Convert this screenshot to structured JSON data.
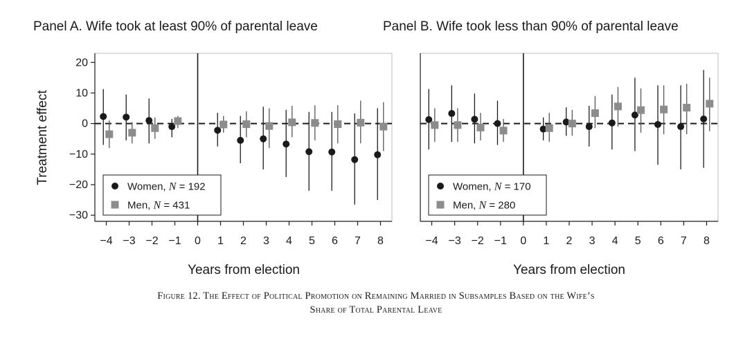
{
  "caption": {
    "line1": "Figure 12. The Effect of Political Promotion on Remaining Married in Subsamples Based on the Wife’s",
    "line2": "Share of Total Parental Leave"
  },
  "colors": {
    "women": "#1a1a1a",
    "men": "#8c8c8c",
    "ci_women": "#1a1a1a",
    "ci_men": "#555555"
  },
  "chart_data": [
    {
      "type": "scatter",
      "title": "Panel A. Wife took at least 90% of parental leave",
      "xlabel": "Years from election",
      "ylabel": "Treatment effect",
      "xlim": [
        -4.5,
        8.5
      ],
      "ylim": [
        -32,
        23
      ],
      "xticks": [
        -4,
        -3,
        -2,
        -1,
        0,
        1,
        2,
        3,
        4,
        5,
        6,
        7,
        8
      ],
      "yticks": [
        20,
        10,
        0,
        -10,
        -20,
        -30
      ],
      "show_ylabel": true,
      "reference_lines": {
        "vertical_x": 0,
        "horizontal_dashed_y": 0
      },
      "legend_position": "bottom-left",
      "series": [
        {
          "name": "Women",
          "n_label": "N",
          "n_value": "192",
          "marker": "circle",
          "x": [
            -4,
            -3,
            -2,
            -1,
            1,
            2,
            3,
            4,
            5,
            6,
            7,
            8
          ],
          "y": [
            2.3,
            2.1,
            1.0,
            -1.0,
            -2.2,
            -5.5,
            -5.0,
            -6.7,
            -9.2,
            -9.3,
            -11.8,
            -10.2
          ],
          "ci_low": [
            -7.0,
            -5.5,
            -6.5,
            -4.5,
            -7.5,
            -13.0,
            -15.0,
            -17.5,
            -22.0,
            -22.0,
            -26.5,
            -25.0
          ],
          "ci_high": [
            11.3,
            9.5,
            8.2,
            1.5,
            3.5,
            2.5,
            5.5,
            4.5,
            3.8,
            3.8,
            3.3,
            5.0
          ]
        },
        {
          "name": "Men",
          "n_label": "N",
          "n_value": "431",
          "marker": "square",
          "x": [
            -4,
            -3,
            -2,
            -1,
            1,
            2,
            3,
            4,
            5,
            6,
            7,
            8
          ],
          "y": [
            -3.5,
            -3.0,
            -1.5,
            0.8,
            -0.3,
            -0.2,
            -0.8,
            0.4,
            0.2,
            -0.2,
            0.3,
            -1.0
          ],
          "ci_low": [
            -8.0,
            -6.5,
            -5.0,
            -1.5,
            -3.0,
            -4.5,
            -8.0,
            -4.5,
            -5.5,
            -6.5,
            -6.5,
            -9.0
          ],
          "ci_high": [
            1.0,
            0.5,
            2.0,
            2.5,
            2.5,
            4.0,
            5.0,
            5.8,
            6.0,
            6.0,
            7.5,
            7.0
          ]
        }
      ]
    },
    {
      "type": "scatter",
      "title": "Panel B. Wife took less than 90% of parental leave",
      "xlabel": "Years from election",
      "ylabel": "",
      "xlim": [
        -4.5,
        8.5
      ],
      "ylim": [
        -32,
        23
      ],
      "xticks": [
        -4,
        -3,
        -2,
        -1,
        0,
        1,
        2,
        3,
        4,
        5,
        6,
        7,
        8
      ],
      "yticks": [],
      "show_ylabel": false,
      "reference_lines": {
        "vertical_x": 0,
        "horizontal_dashed_y": 0
      },
      "legend_position": "bottom-left",
      "series": [
        {
          "name": "Women",
          "n_label": "N",
          "n_value": "170",
          "marker": "circle",
          "x": [
            -4,
            -3,
            -2,
            -1,
            1,
            2,
            3,
            4,
            5,
            6,
            7,
            8
          ],
          "y": [
            1.3,
            3.3,
            1.4,
            0.0,
            -1.8,
            0.5,
            -1.0,
            0.2,
            2.8,
            -0.3,
            -1.0,
            1.5
          ],
          "ci_low": [
            -8.5,
            -6.0,
            -6.5,
            -7.0,
            -5.5,
            -4.0,
            -7.5,
            -8.5,
            -9.0,
            -13.5,
            -15.0,
            -14.5
          ],
          "ci_high": [
            11.3,
            12.5,
            9.8,
            7.5,
            2.0,
            5.3,
            5.8,
            9.5,
            15.0,
            12.5,
            12.5,
            17.5
          ]
        },
        {
          "name": "Men",
          "n_label": "N",
          "n_value": "280",
          "marker": "square",
          "x": [
            -4,
            -3,
            -2,
            -1,
            1,
            2,
            3,
            4,
            5,
            6,
            7,
            8
          ],
          "y": [
            -0.5,
            -0.5,
            -1.3,
            -2.3,
            -1.5,
            0.0,
            3.4,
            5.6,
            4.4,
            4.6,
            5.2,
            6.5
          ],
          "ci_low": [
            -6.0,
            -6.0,
            -5.5,
            -6.0,
            -6.0,
            -4.0,
            -1.5,
            -1.0,
            -3.0,
            -3.5,
            -3.5,
            -2.5
          ],
          "ci_high": [
            5.0,
            5.0,
            3.5,
            1.5,
            3.5,
            4.5,
            9.0,
            12.0,
            11.5,
            12.5,
            13.0,
            15.0
          ]
        }
      ]
    }
  ]
}
